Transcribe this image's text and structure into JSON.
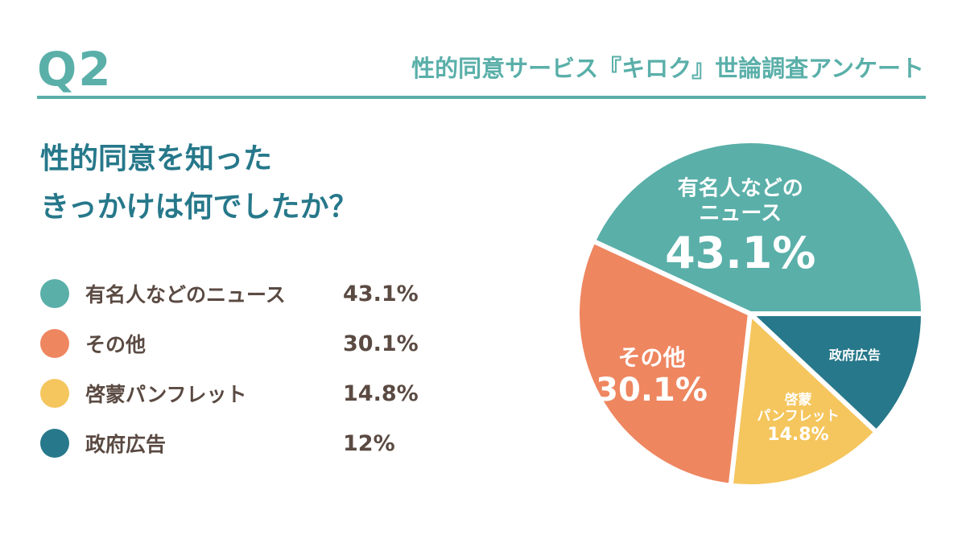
{
  "header": {
    "question_no": "Q2",
    "survey_title": "性的同意サービス『キロク』世論調査アンケート"
  },
  "question": {
    "line1": "性的同意を知った",
    "line2": "きっかけは何でしたか？"
  },
  "chart_data": {
    "type": "pie",
    "categories": [
      "有名人などのニュース",
      "その他",
      "啓蒙パンフレット",
      "政府広告"
    ],
    "values": [
      43.1,
      30.1,
      14.8,
      12
    ],
    "value_labels": [
      "43.1%",
      "30.1%",
      "14.8%",
      "12%"
    ],
    "slice_labels": [
      [
        "有名人などの",
        "ニュース"
      ],
      [
        "その他"
      ],
      [
        "啓蒙",
        "パンフレット"
      ],
      [
        "政府広告"
      ]
    ],
    "slice_value_labels": [
      "43.1%",
      "30.1%",
      "14.8%",
      ""
    ],
    "colors": [
      "#5aafa9",
      "#ee8660",
      "#f5c65e",
      "#27788a"
    ],
    "legend_placement": "left"
  }
}
